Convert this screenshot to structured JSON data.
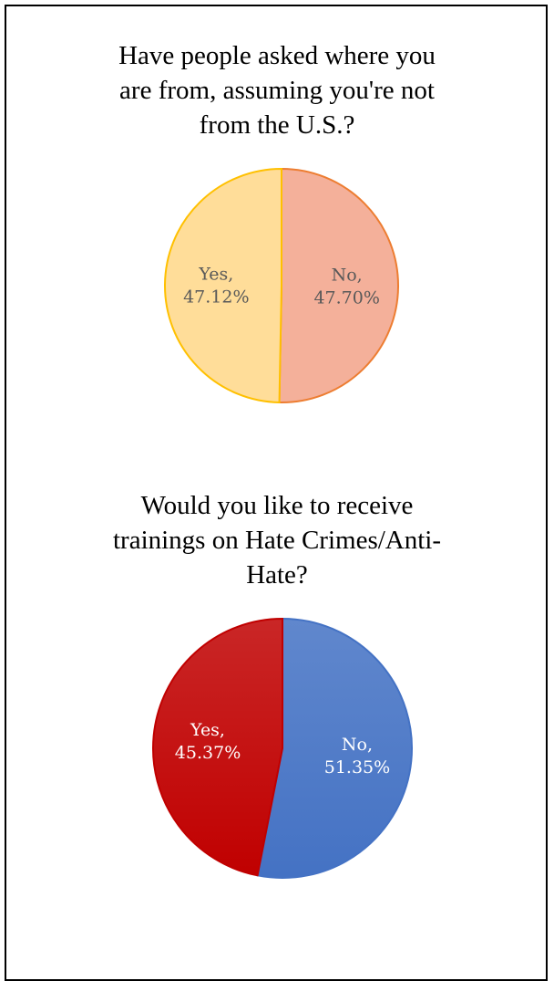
{
  "chart_data": [
    {
      "type": "pie",
      "title_lines": [
        "Have people asked where you",
        "are from, assuming you're not",
        "from the U.S.?"
      ],
      "slices": [
        {
          "label": "No",
          "value": 47.7,
          "display": "47.70%",
          "fill": "#f4b09a",
          "stroke": "#ed7d31",
          "text_color": "#595959"
        },
        {
          "label": "Yes",
          "value": 47.12,
          "display": "47.12%",
          "fill": "#ffdd99",
          "stroke": "#ffc000",
          "text_color": "#595959"
        }
      ],
      "start_angle_deg": 0,
      "direction": "clockwise"
    },
    {
      "type": "pie",
      "title_lines": [
        "Would you like to receive",
        "trainings on Hate Crimes/Anti-",
        "Hate?"
      ],
      "slices": [
        {
          "label": "No",
          "value": 51.35,
          "display": "51.35%",
          "fill": "#4472c4",
          "stroke": "#4472c4",
          "text_color": "#ffffff"
        },
        {
          "label": "Yes",
          "value": 45.37,
          "display": "45.37%",
          "fill": "#c00000",
          "stroke": "#c00000",
          "text_color": "#ffffff"
        }
      ],
      "start_angle_deg": 0,
      "direction": "clockwise"
    }
  ]
}
